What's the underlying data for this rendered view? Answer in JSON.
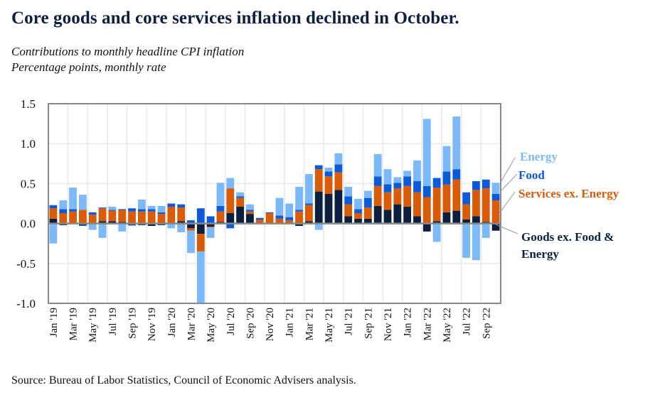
{
  "header": {
    "title": "Core goods and core services inflation declined in October.",
    "subtitle1": "Contributions to monthly headline CPI inflation",
    "subtitle2": "Percentage points, monthly rate"
  },
  "footer": {
    "source": "Source: Bureau of Labor Statistics, Council of Economic Advisers analysis."
  },
  "chart_data": {
    "type": "bar",
    "stacked": true,
    "title": "Core goods and core services inflation declined in October.",
    "subtitle": "Contributions to monthly headline CPI inflation; Percentage points, monthly rate",
    "xlabel": "",
    "ylabel": "Percentage points",
    "ylim": [
      -1.0,
      1.5
    ],
    "yticks": [
      "1.5",
      "1.0",
      "0.5",
      "0.0",
      "-0.5",
      "-1.0"
    ],
    "ytick_values": [
      1.5,
      1.0,
      0.5,
      0.0,
      -0.5,
      -1.0
    ],
    "grid": true,
    "legend_placement": "right",
    "categories": [
      "Jan '19",
      "Feb '19",
      "Mar '19",
      "Apr '19",
      "May '19",
      "Jun '19",
      "Jul '19",
      "Aug '19",
      "Sep '19",
      "Oct '19",
      "Nov '19",
      "Dec '19",
      "Jan '20",
      "Feb '20",
      "Mar '20",
      "Apr '20",
      "May '20",
      "Jun '20",
      "Jul '20",
      "Aug '20",
      "Sep '20",
      "Oct '20",
      "Nov '20",
      "Dec '20",
      "Jan '21",
      "Feb '21",
      "Mar '21",
      "Apr '21",
      "May '21",
      "Jun '21",
      "Jul '21",
      "Aug '21",
      "Sep '21",
      "Oct '21",
      "Nov '21",
      "Dec '21",
      "Jan '22",
      "Feb '22",
      "Mar '22",
      "Apr '22",
      "May '22",
      "Jun '22",
      "Jul '22",
      "Aug '22",
      "Sep '22",
      "Oct '22"
    ],
    "xtick_labels": [
      "Jan '19",
      "Mar '19",
      "May '19",
      "Jul '19",
      "Sep '19",
      "Nov '19",
      "Jan '20",
      "Mar '20",
      "May '20",
      "Jul '20",
      "Sep '20",
      "Nov '20",
      "Jan '21",
      "Mar '21",
      "May '21",
      "Jul '21",
      "Sep '21",
      "Nov '21",
      "Jan '22",
      "Mar '22",
      "May '22",
      "Jul '22",
      "Sep '22"
    ],
    "series": [
      {
        "name": "Goods ex. Food & Energy",
        "legend_label_line1": "Goods ex. Food &",
        "legend_label_line2": "Energy",
        "color": "#0c1f3f",
        "values": [
          0.06,
          -0.02,
          0.0,
          -0.02,
          0.0,
          0.03,
          0.03,
          0.02,
          -0.02,
          -0.02,
          -0.03,
          -0.02,
          0.0,
          0.03,
          -0.06,
          -0.13,
          -0.04,
          0.02,
          0.13,
          0.21,
          0.12,
          0.0,
          0.0,
          0.0,
          0.0,
          -0.03,
          0.03,
          0.4,
          0.37,
          0.42,
          0.09,
          0.06,
          0.06,
          0.22,
          0.17,
          0.24,
          0.21,
          0.09,
          -0.1,
          0.03,
          0.14,
          0.16,
          0.05,
          0.09,
          0.02,
          -0.09
        ]
      },
      {
        "name": "Services ex. Energy",
        "legend_label": "Services ex. Energy",
        "color": "#d95b06",
        "values": [
          0.13,
          0.13,
          0.15,
          0.17,
          0.11,
          0.16,
          0.13,
          0.15,
          0.15,
          0.15,
          0.15,
          0.12,
          0.21,
          0.17,
          -0.03,
          -0.22,
          -0.01,
          0.13,
          0.31,
          0.11,
          0.03,
          0.05,
          0.13,
          0.06,
          0.04,
          0.15,
          0.2,
          0.28,
          0.22,
          0.22,
          0.15,
          0.07,
          0.14,
          0.25,
          0.22,
          0.2,
          0.26,
          0.3,
          0.33,
          0.42,
          0.35,
          0.39,
          0.19,
          0.33,
          0.42,
          0.29
        ]
      },
      {
        "name": "Food",
        "legend_label": "Food",
        "color": "#0b5ad9",
        "values": [
          0.04,
          0.05,
          0.03,
          -0.01,
          0.03,
          0.01,
          0.01,
          0.01,
          0.04,
          0.03,
          0.03,
          0.02,
          0.04,
          0.04,
          0.04,
          0.19,
          0.09,
          0.07,
          -0.06,
          0.02,
          0.02,
          0.02,
          0.01,
          0.04,
          0.04,
          0.02,
          0.02,
          0.05,
          0.06,
          0.1,
          0.1,
          0.05,
          0.12,
          0.12,
          0.1,
          0.07,
          0.12,
          0.14,
          0.14,
          0.12,
          0.16,
          0.13,
          0.15,
          0.11,
          0.11,
          0.08
        ]
      },
      {
        "name": "Energy",
        "legend_label": "Energy",
        "color": "#7cb9fb",
        "values": [
          -0.25,
          0.11,
          0.27,
          0.19,
          -0.08,
          -0.18,
          0.04,
          -0.1,
          -0.01,
          0.12,
          0.04,
          0.08,
          -0.06,
          -0.11,
          -0.28,
          -0.65,
          -0.13,
          0.29,
          0.13,
          0.05,
          0.07,
          0.0,
          0.0,
          0.22,
          0.17,
          0.29,
          0.37,
          -0.08,
          0.05,
          0.14,
          0.12,
          0.13,
          0.09,
          0.28,
          0.19,
          0.07,
          0.07,
          0.26,
          0.84,
          -0.23,
          0.32,
          0.66,
          -0.43,
          -0.46,
          -0.18,
          0.14
        ]
      }
    ]
  }
}
